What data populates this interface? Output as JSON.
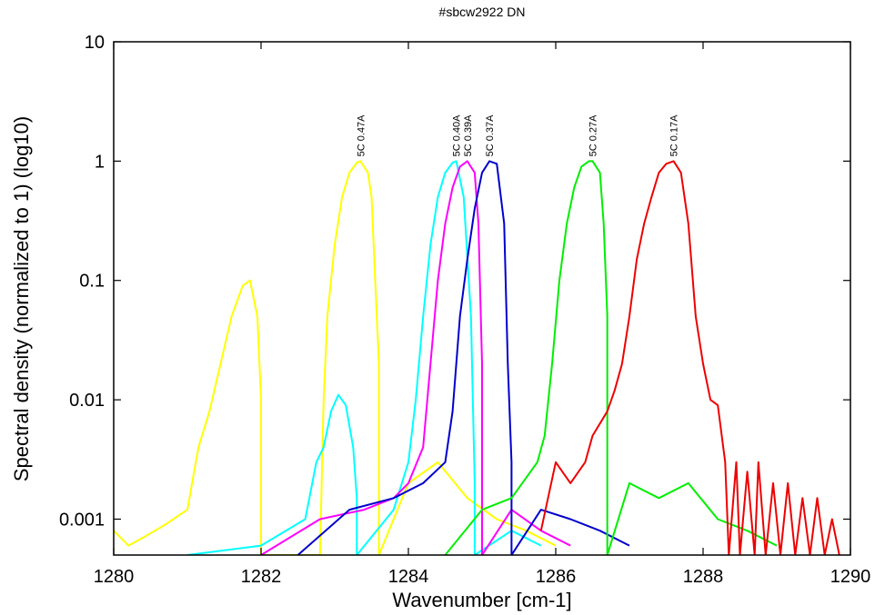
{
  "chart_data": {
    "type": "line",
    "title": "#sbcw2922 DN",
    "xlabel": "Wavenumber [cm-1]",
    "ylabel": "Spectral density (normalized to 1) (log10)",
    "xlim": [
      1280,
      1290
    ],
    "ylim": [
      0.0005,
      10
    ],
    "yscale": "log",
    "x_ticks": [
      "1280",
      "1282",
      "1284",
      "1286",
      "1288",
      "1290"
    ],
    "x_tick_values": [
      1280,
      1282,
      1284,
      1286,
      1288,
      1290
    ],
    "y_ticks": [
      "0.001",
      "0.01",
      "0.1",
      "1",
      "10"
    ],
    "y_tick_values": [
      0.001,
      0.01,
      0.1,
      1,
      10
    ],
    "grid": false,
    "series": [
      {
        "color": "#ffff00",
        "label": "5C 0.47A",
        "peak": [
          1283.35,
          1
        ],
        "x": [
          1280.0,
          1280.2,
          1280.4,
          1280.7,
          1281.0,
          1281.15,
          1281.3,
          1281.45,
          1281.6,
          1281.75,
          1281.85,
          1281.95,
          1282.0,
          1282.0,
          1282.8,
          1282.85,
          1282.9,
          1283.0,
          1283.1,
          1283.2,
          1283.3,
          1283.35,
          1283.45,
          1283.5,
          1283.55,
          1283.6,
          1283.6,
          1284.0,
          1284.4,
          1284.8,
          1285.2,
          1285.6,
          1286.0
        ],
        "y": [
          0.0008,
          0.0006,
          0.0007,
          0.0009,
          0.0012,
          0.004,
          0.008,
          0.02,
          0.05,
          0.09,
          0.1,
          0.05,
          0.01,
          0.0005,
          0.0005,
          0.01,
          0.05,
          0.2,
          0.5,
          0.8,
          0.97,
          1.0,
          0.8,
          0.5,
          0.1,
          0.02,
          0.0005,
          0.002,
          0.003,
          0.0015,
          0.001,
          0.0008,
          0.0006
        ]
      },
      {
        "color": "#00ffff",
        "label": "5C 0.40A",
        "peak": [
          1284.65,
          1
        ],
        "x": [
          1281.0,
          1282.0,
          1282.6,
          1282.75,
          1282.85,
          1282.95,
          1283.05,
          1283.15,
          1283.25,
          1283.3,
          1283.3,
          1283.8,
          1284.0,
          1284.1,
          1284.2,
          1284.3,
          1284.4,
          1284.5,
          1284.6,
          1284.65,
          1284.75,
          1284.85,
          1284.9,
          1284.9,
          1285.4,
          1285.8
        ],
        "y": [
          0.0005,
          0.0006,
          0.001,
          0.003,
          0.004,
          0.008,
          0.011,
          0.009,
          0.004,
          0.0015,
          0.0005,
          0.0012,
          0.003,
          0.01,
          0.05,
          0.2,
          0.5,
          0.8,
          0.97,
          1.0,
          0.5,
          0.05,
          0.002,
          0.0005,
          0.0008,
          0.0006
        ]
      },
      {
        "color": "#ff00ff",
        "label": "5C 0.39A",
        "peak": [
          1284.8,
          1
        ],
        "x": [
          1282.0,
          1282.8,
          1283.4,
          1283.8,
          1284.0,
          1284.2,
          1284.3,
          1284.4,
          1284.5,
          1284.6,
          1284.7,
          1284.8,
          1284.9,
          1284.95,
          1285.0,
          1285.0,
          1285.4,
          1285.8,
          1286.2
        ],
        "y": [
          0.0005,
          0.001,
          0.0012,
          0.0015,
          0.002,
          0.004,
          0.02,
          0.1,
          0.3,
          0.6,
          0.9,
          1.0,
          0.8,
          0.3,
          0.02,
          0.0005,
          0.0012,
          0.0008,
          0.0006
        ]
      },
      {
        "color": "#0000cc",
        "label": "5C 0.37A",
        "peak": [
          1285.1,
          1
        ],
        "x": [
          1282.5,
          1283.2,
          1283.8,
          1284.2,
          1284.5,
          1284.6,
          1284.7,
          1284.8,
          1284.9,
          1285.0,
          1285.1,
          1285.2,
          1285.3,
          1285.35,
          1285.4,
          1285.4,
          1285.8,
          1286.2,
          1286.6,
          1287.0
        ],
        "y": [
          0.0005,
          0.0012,
          0.0015,
          0.002,
          0.003,
          0.008,
          0.05,
          0.15,
          0.4,
          0.8,
          1.0,
          0.95,
          0.3,
          0.02,
          0.003,
          0.0005,
          0.0012,
          0.001,
          0.0008,
          0.0006
        ]
      },
      {
        "color": "#00ee00",
        "label": "5C 0.27A",
        "peak": [
          1286.5,
          1
        ],
        "x": [
          1284.5,
          1285.0,
          1285.4,
          1285.75,
          1285.85,
          1285.95,
          1286.05,
          1286.15,
          1286.25,
          1286.35,
          1286.45,
          1286.5,
          1286.6,
          1286.65,
          1286.7,
          1286.7,
          1287.0,
          1287.4,
          1287.8,
          1288.2,
          1288.6,
          1289.0
        ],
        "y": [
          0.0005,
          0.0012,
          0.0015,
          0.003,
          0.005,
          0.02,
          0.1,
          0.3,
          0.6,
          0.9,
          1.0,
          1.0,
          0.8,
          0.3,
          0.05,
          0.0005,
          0.002,
          0.0015,
          0.002,
          0.001,
          0.0008,
          0.0006
        ]
      },
      {
        "color": "#ee0000",
        "label": "5C 0.17A",
        "peak": [
          1287.6,
          1
        ],
        "x": [
          1285.8,
          1286.0,
          1286.2,
          1286.4,
          1286.5,
          1286.7,
          1286.8,
          1286.9,
          1287.0,
          1287.1,
          1287.2,
          1287.3,
          1287.4,
          1287.5,
          1287.6,
          1287.7,
          1287.8,
          1287.9,
          1288.0,
          1288.1,
          1288.2,
          1288.3,
          1288.35,
          1288.45,
          1288.5,
          1288.6,
          1288.7,
          1288.75,
          1288.85,
          1288.95,
          1289.05,
          1289.15,
          1289.25,
          1289.35,
          1289.45,
          1289.55,
          1289.65,
          1289.75,
          1289.85
        ],
        "y": [
          0.0008,
          0.003,
          0.002,
          0.003,
          0.005,
          0.008,
          0.012,
          0.02,
          0.05,
          0.15,
          0.3,
          0.5,
          0.8,
          0.95,
          1.0,
          0.8,
          0.3,
          0.05,
          0.02,
          0.01,
          0.009,
          0.003,
          0.0005,
          0.003,
          0.0005,
          0.0025,
          0.0005,
          0.003,
          0.0005,
          0.002,
          0.0005,
          0.002,
          0.0005,
          0.0015,
          0.0005,
          0.0015,
          0.0005,
          0.001,
          0.0005
        ]
      }
    ]
  }
}
